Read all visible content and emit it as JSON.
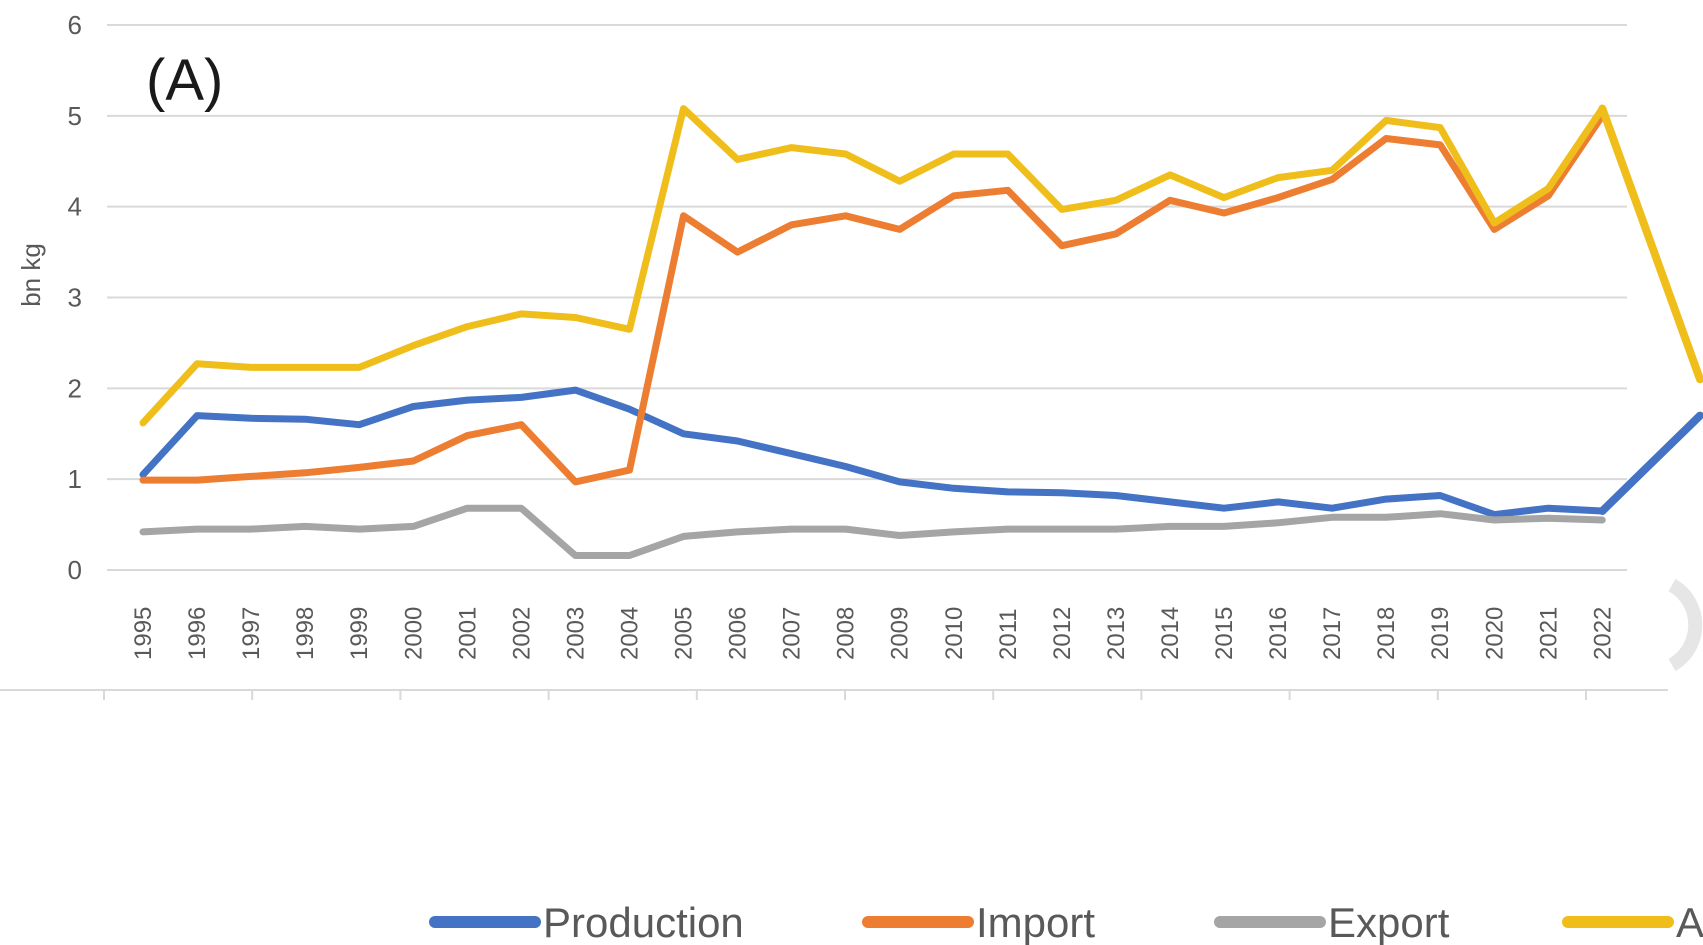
{
  "chart_data": {
    "type": "line",
    "panel_label": "(A)",
    "ylabel": "bn kg",
    "xlabel": "",
    "ylim": [
      0,
      6
    ],
    "y_ticks": [
      "0",
      "1",
      "2",
      "3",
      "4",
      "5",
      "6"
    ],
    "grid": "horizontal",
    "legend_position": "bottom",
    "categories": [
      "1995",
      "1996",
      "1997",
      "1998",
      "1999",
      "2000",
      "2001",
      "2002",
      "2003",
      "2004",
      "2005",
      "2006",
      "2007",
      "2008",
      "2009",
      "2010",
      "2011",
      "2012",
      "2013",
      "2014",
      "2015",
      "2016",
      "2017",
      "2018",
      "2019",
      "2020",
      "2021",
      "2022"
    ],
    "series": [
      {
        "name": "Production",
        "color": "#4472C4",
        "values": [
          1.05,
          1.7,
          1.67,
          1.66,
          1.6,
          1.8,
          1.87,
          1.9,
          1.98,
          1.77,
          1.5,
          1.42,
          1.28,
          1.14,
          0.97,
          0.9,
          0.86,
          0.85,
          0.82,
          0.75,
          0.68,
          0.75,
          0.68,
          0.78,
          0.82,
          0.61,
          0.68,
          0.65
        ]
      },
      {
        "name": "Import",
        "color": "#ED7D31",
        "values": [
          0.99,
          0.99,
          1.03,
          1.07,
          1.13,
          1.2,
          1.48,
          1.6,
          0.97,
          1.1,
          3.9,
          3.5,
          3.8,
          3.9,
          3.75,
          4.12,
          4.18,
          3.57,
          3.7,
          4.07,
          3.93,
          4.1,
          4.3,
          4.75,
          4.68,
          3.75,
          4.12,
          5.0
        ]
      },
      {
        "name": "Export",
        "color": "#A5A5A5",
        "values": [
          0.42,
          0.45,
          0.45,
          0.48,
          0.45,
          0.48,
          0.68,
          0.68,
          0.16,
          0.16,
          0.37,
          0.42,
          0.45,
          0.45,
          0.38,
          0.42,
          0.45,
          0.45,
          0.45,
          0.48,
          0.48,
          0.52,
          0.58,
          0.58,
          0.62,
          0.55,
          0.57,
          0.55
        ]
      },
      {
        "name": "A",
        "color": "#F0BE1B",
        "values": [
          1.62,
          2.27,
          2.23,
          2.23,
          2.23,
          2.47,
          2.68,
          2.82,
          2.78,
          2.65,
          5.08,
          4.52,
          4.65,
          4.58,
          4.28,
          4.58,
          4.58,
          3.97,
          4.07,
          4.35,
          4.1,
          4.32,
          4.4,
          4.95,
          4.87,
          3.82,
          4.2,
          5.08
        ]
      }
    ],
    "offscreen_trend_arrows": [
      {
        "series": "A",
        "from_year": "2022",
        "to_value": 2.1
      },
      {
        "series": "Production",
        "from_year": "2022",
        "to_value": 1.7
      }
    ]
  }
}
